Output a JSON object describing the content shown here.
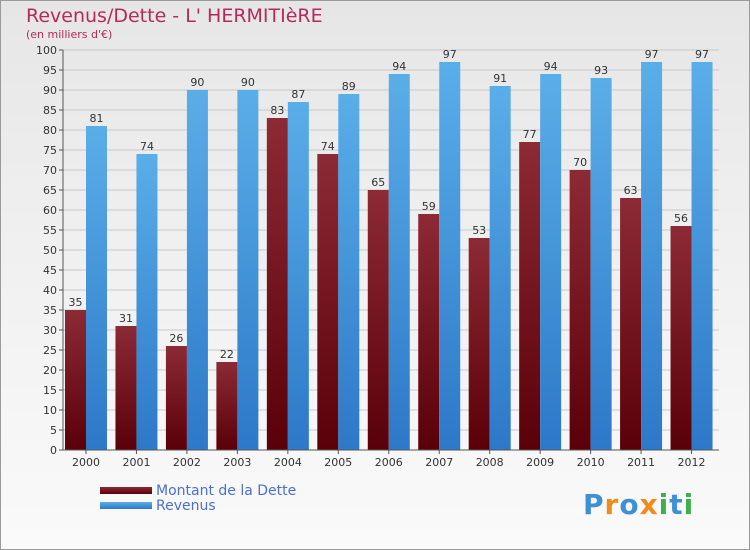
{
  "title": "Revenus/Dette - L' HERMITIèRE",
  "subtitle": "(en milliers d'€)",
  "logo": {
    "text": "Proxiti",
    "letters": [
      "P",
      "r",
      "o",
      "x",
      "i",
      "t",
      "i"
    ],
    "colors": [
      "#3d8fd6",
      "#f28a1c",
      "#3d8fd6",
      "#f28a1c",
      "#3db04a",
      "#3d8fd6",
      "#3db04a"
    ]
  },
  "colors": {
    "dette_top": "#8c2a35",
    "dette_bottom": "#5a0008",
    "revenus_top": "#5aaee8",
    "revenus_bottom": "#2d78c8",
    "gridline": "#c8c8c8",
    "axis": "#555555",
    "title": "#b52a5b",
    "legend_text": "#4a6fd4"
  },
  "chart_data": {
    "type": "bar",
    "title": "Revenus/Dette - L' HERMITIèRE",
    "ylabel": "(en milliers d'€)",
    "xlabel": "",
    "ylim": [
      0,
      100
    ],
    "ytick_step": 5,
    "grid": true,
    "legend_position": "bottom-left",
    "categories": [
      "2000",
      "2001",
      "2002",
      "2003",
      "2004",
      "2005",
      "2006",
      "2007",
      "2008",
      "2009",
      "2010",
      "2011",
      "2012"
    ],
    "series": [
      {
        "name": "Montant de la Dette",
        "values": [
          35,
          31,
          26,
          22,
          83,
          74,
          65,
          59,
          53,
          77,
          70,
          63,
          56
        ]
      },
      {
        "name": "Revenus",
        "values": [
          81,
          74,
          90,
          90,
          87,
          89,
          94,
          97,
          91,
          94,
          93,
          97,
          97
        ]
      }
    ]
  }
}
